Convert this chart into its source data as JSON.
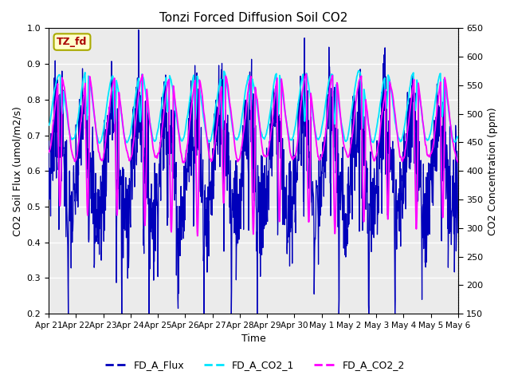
{
  "title": "Tonzi Forced Diffusion Soil CO2",
  "xlabel": "Time",
  "ylabel_left": "CO2 Soil Flux (umol/m2/s)",
  "ylabel_right": "CO2 Concentration (ppm)",
  "ylim_left": [
    0.2,
    1.0
  ],
  "ylim_right": [
    150,
    650
  ],
  "xlim": [
    0,
    15.0
  ],
  "bg_color": "#ebebeb",
  "fig_color": "#ffffff",
  "flux_color": "#0000bb",
  "co2_1_color": "#00e5ff",
  "co2_2_color": "#ff00ff",
  "legend_label": "TZ_fd",
  "legend_box_facecolor": "#ffffcc",
  "legend_box_edgecolor": "#aaaa00",
  "legend_text_color": "#aa0000",
  "xtick_labels": [
    "Apr 21",
    "Apr 22",
    "Apr 23",
    "Apr 24",
    "Apr 25",
    "Apr 26",
    "Apr 27",
    "Apr 28",
    "Apr 29",
    "Apr 30",
    "May 1",
    "May 2",
    "May 3",
    "May 4",
    "May 5",
    "May 6"
  ],
  "xtick_positions": [
    0,
    1,
    2,
    3,
    4,
    5,
    6,
    7,
    8,
    9,
    10,
    11,
    12,
    13,
    14,
    15
  ],
  "line_labels": [
    "FD_A_Flux",
    "FD_A_CO2_1",
    "FD_A_CO2_2"
  ],
  "n_days": 15,
  "points_per_day": 96
}
